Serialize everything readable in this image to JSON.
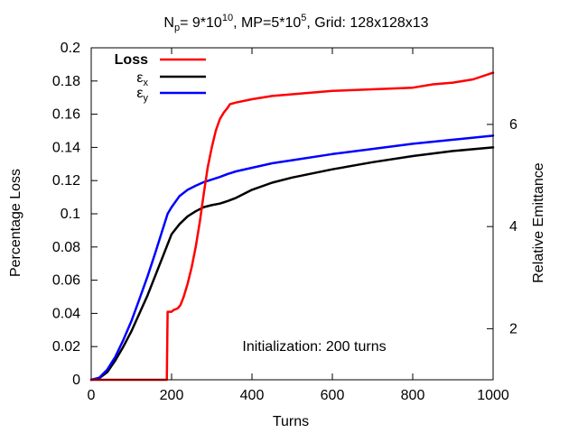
{
  "chart_data": {
    "type": "line",
    "title": {
      "np_label": "N",
      "np_sub": "p",
      "np_value": "= 9*10",
      "np_exp": "10",
      "mp_value": ", MP=5*10",
      "mp_exp": "5",
      "grid": ", Grid: 128x128x13"
    },
    "xlabel": "Turns",
    "ylabel_left": "Percentage Loss",
    "ylabel_right": "Relative Emittance",
    "xlim": [
      0,
      1000
    ],
    "ylim_left": [
      0,
      0.2
    ],
    "ylim_right": [
      1.0,
      7.5
    ],
    "x_ticks": [
      "0",
      "200",
      "400",
      "600",
      "800",
      "1000"
    ],
    "y_ticks_left": [
      "0",
      "0.02",
      "0.04",
      "0.06",
      "0.08",
      "0.1",
      "0.12",
      "0.14",
      "0.16",
      "0.18",
      "0.2"
    ],
    "y_ticks_right": [
      "2",
      "4",
      "6"
    ],
    "annotation": "Initialization: 200 turns",
    "legend": {
      "position": "top-left",
      "items": [
        {
          "label": "Loss",
          "sub": "",
          "color": "#ff0000"
        },
        {
          "label": "ε",
          "sub": "x",
          "color": "#000000"
        },
        {
          "label": "ε",
          "sub": "y",
          "color": "#0000ff"
        }
      ]
    },
    "series": [
      {
        "name": "Loss",
        "axis": "left",
        "color": "#ff0000",
        "x": [
          0,
          188,
          190,
          200,
          205,
          215,
          222,
          230,
          240,
          250,
          260,
          270,
          280,
          290,
          300,
          310,
          320,
          330,
          340,
          345,
          360,
          400,
          450,
          500,
          600,
          700,
          800,
          850,
          900,
          950,
          1000
        ],
        "y": [
          0,
          0,
          0.041,
          0.041,
          0.042,
          0.043,
          0.045,
          0.05,
          0.058,
          0.068,
          0.08,
          0.095,
          0.112,
          0.128,
          0.14,
          0.15,
          0.157,
          0.161,
          0.164,
          0.166,
          0.167,
          0.169,
          0.171,
          0.172,
          0.174,
          0.175,
          0.176,
          0.178,
          0.179,
          0.181,
          0.185
        ]
      },
      {
        "name": "εx",
        "axis": "right",
        "color": "#000000",
        "x": [
          0,
          20,
          40,
          60,
          80,
          100,
          120,
          140,
          160,
          180,
          200,
          220,
          240,
          260,
          280,
          300,
          320,
          340,
          360,
          400,
          450,
          500,
          600,
          700,
          800,
          900,
          1000
        ],
        "y": [
          1.0,
          1.03,
          1.15,
          1.38,
          1.65,
          1.95,
          2.3,
          2.65,
          3.05,
          3.45,
          3.85,
          4.05,
          4.2,
          4.3,
          4.38,
          4.42,
          4.45,
          4.5,
          4.56,
          4.72,
          4.86,
          4.96,
          5.12,
          5.26,
          5.38,
          5.48,
          5.55
        ]
      },
      {
        "name": "εy",
        "axis": "right",
        "color": "#0000ff",
        "x": [
          0,
          20,
          40,
          60,
          80,
          100,
          120,
          140,
          160,
          180,
          190,
          200,
          220,
          240,
          260,
          280,
          300,
          320,
          340,
          360,
          400,
          450,
          500,
          600,
          700,
          800,
          900,
          1000
        ],
        "y": [
          1.0,
          1.04,
          1.2,
          1.45,
          1.78,
          2.15,
          2.58,
          3.02,
          3.5,
          4.0,
          4.25,
          4.38,
          4.6,
          4.72,
          4.8,
          4.87,
          4.92,
          4.97,
          5.03,
          5.08,
          5.15,
          5.24,
          5.3,
          5.42,
          5.52,
          5.62,
          5.7,
          5.78
        ]
      }
    ]
  }
}
